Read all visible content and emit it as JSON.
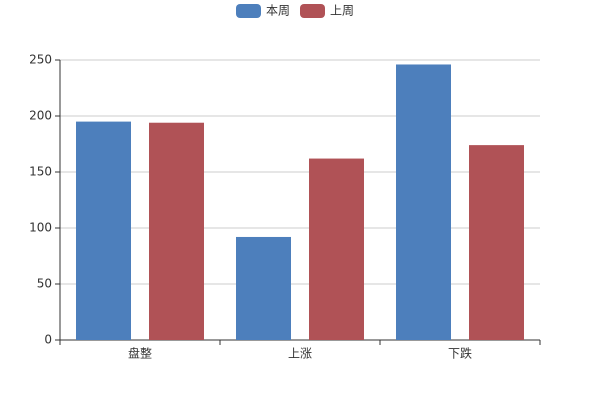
{
  "chart_data": {
    "type": "bar",
    "categories": [
      "盘整",
      "上涨",
      "下跌"
    ],
    "series": [
      {
        "name": "本周",
        "color": "#4d7fbc",
        "values": [
          195,
          92,
          246
        ]
      },
      {
        "name": "上周",
        "color": "#b05256",
        "values": [
          194,
          162,
          174
        ]
      }
    ],
    "ylim": [
      0,
      250
    ],
    "yticks": [
      0,
      50,
      100,
      150,
      200,
      250
    ],
    "grid": true,
    "legend": "top"
  }
}
